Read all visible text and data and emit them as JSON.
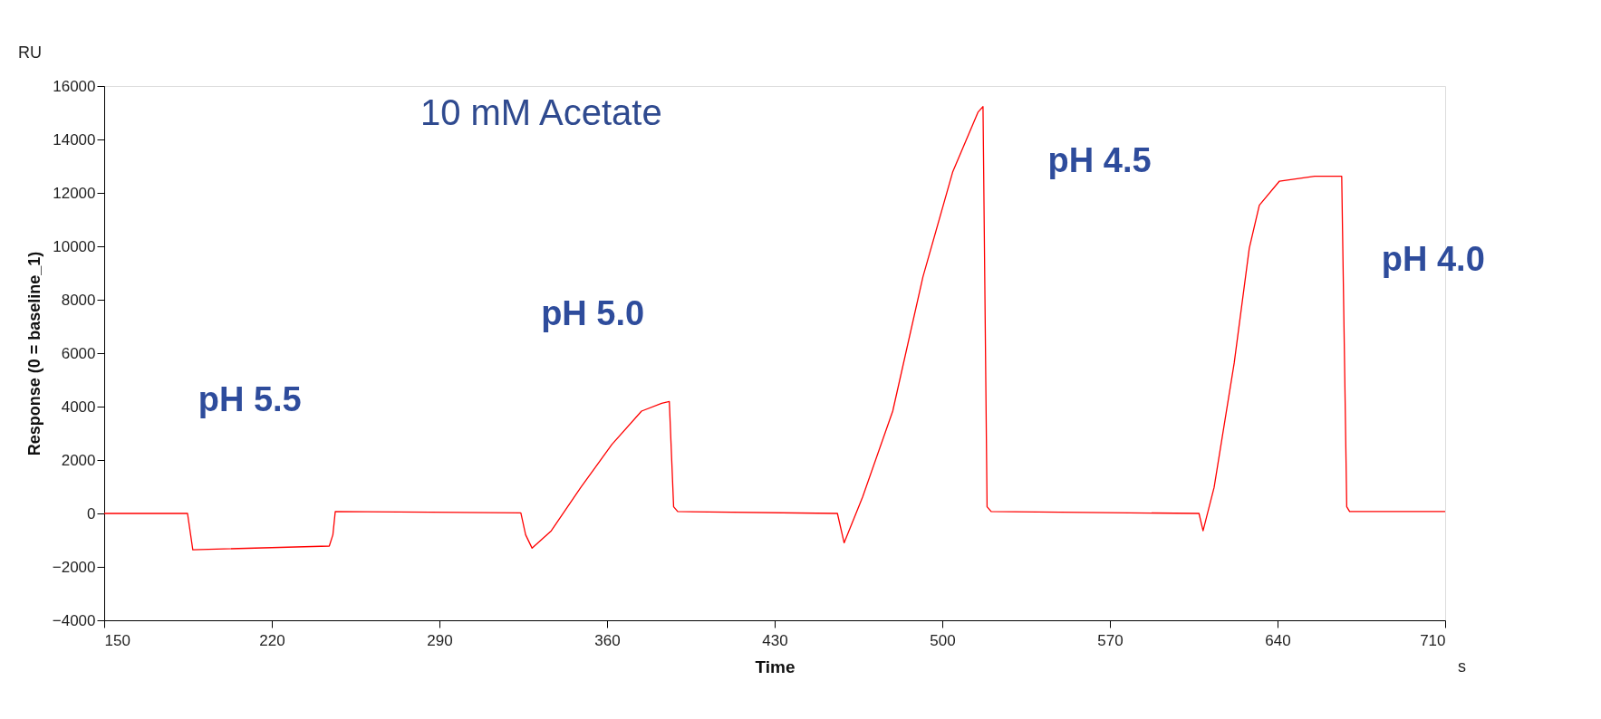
{
  "chart_data": {
    "type": "line",
    "xlabel": "Time",
    "ylabel": "Response (0 = baseline_1)",
    "annotations": [
      "10 mM Acetate",
      "pH 5.5",
      "pH 5.0",
      "pH 4.5",
      "pH 4.0",
      "RU",
      "s"
    ],
    "x": [
      150,
      184.8,
      187,
      244,
      245.5,
      246.5,
      324,
      326,
      328.7,
      336.7,
      349,
      362,
      374.4,
      382.8,
      386,
      387.8,
      389.5,
      456.2,
      459,
      466.7,
      479.3,
      491.9,
      504.4,
      514.9,
      517,
      518.7,
      520.4,
      607.2,
      608.9,
      613.5,
      621.9,
      628.2,
      632.4,
      640.8,
      655.5,
      666.8,
      668.9,
      670.1,
      710
    ],
    "series": [
      {
        "color": "#ff0000",
        "values": [
          0,
          0,
          -1360,
          -1220,
          -800,
          70,
          20,
          -800,
          -1300,
          -650,
          970,
          2580,
          3830,
          4120,
          4190,
          250,
          70,
          0,
          -1100,
          610,
          3830,
          8850,
          12800,
          15020,
          15230,
          250,
          70,
          0,
          -650,
          970,
          5630,
          9930,
          11540,
          12440,
          12620,
          12620,
          250,
          70,
          70
        ]
      }
    ],
    "xlim": [
      150,
      710
    ],
    "xticks": [
      150,
      220,
      290,
      360,
      430,
      500,
      570,
      640,
      710
    ],
    "ylim": [
      -4000,
      16000
    ],
    "yticks": [
      -4000,
      -2000,
      0,
      2000,
      4000,
      6000,
      8000,
      10000,
      12000,
      14000,
      16000
    ],
    "grid": false,
    "marker": "none",
    "line_style": "solid"
  }
}
